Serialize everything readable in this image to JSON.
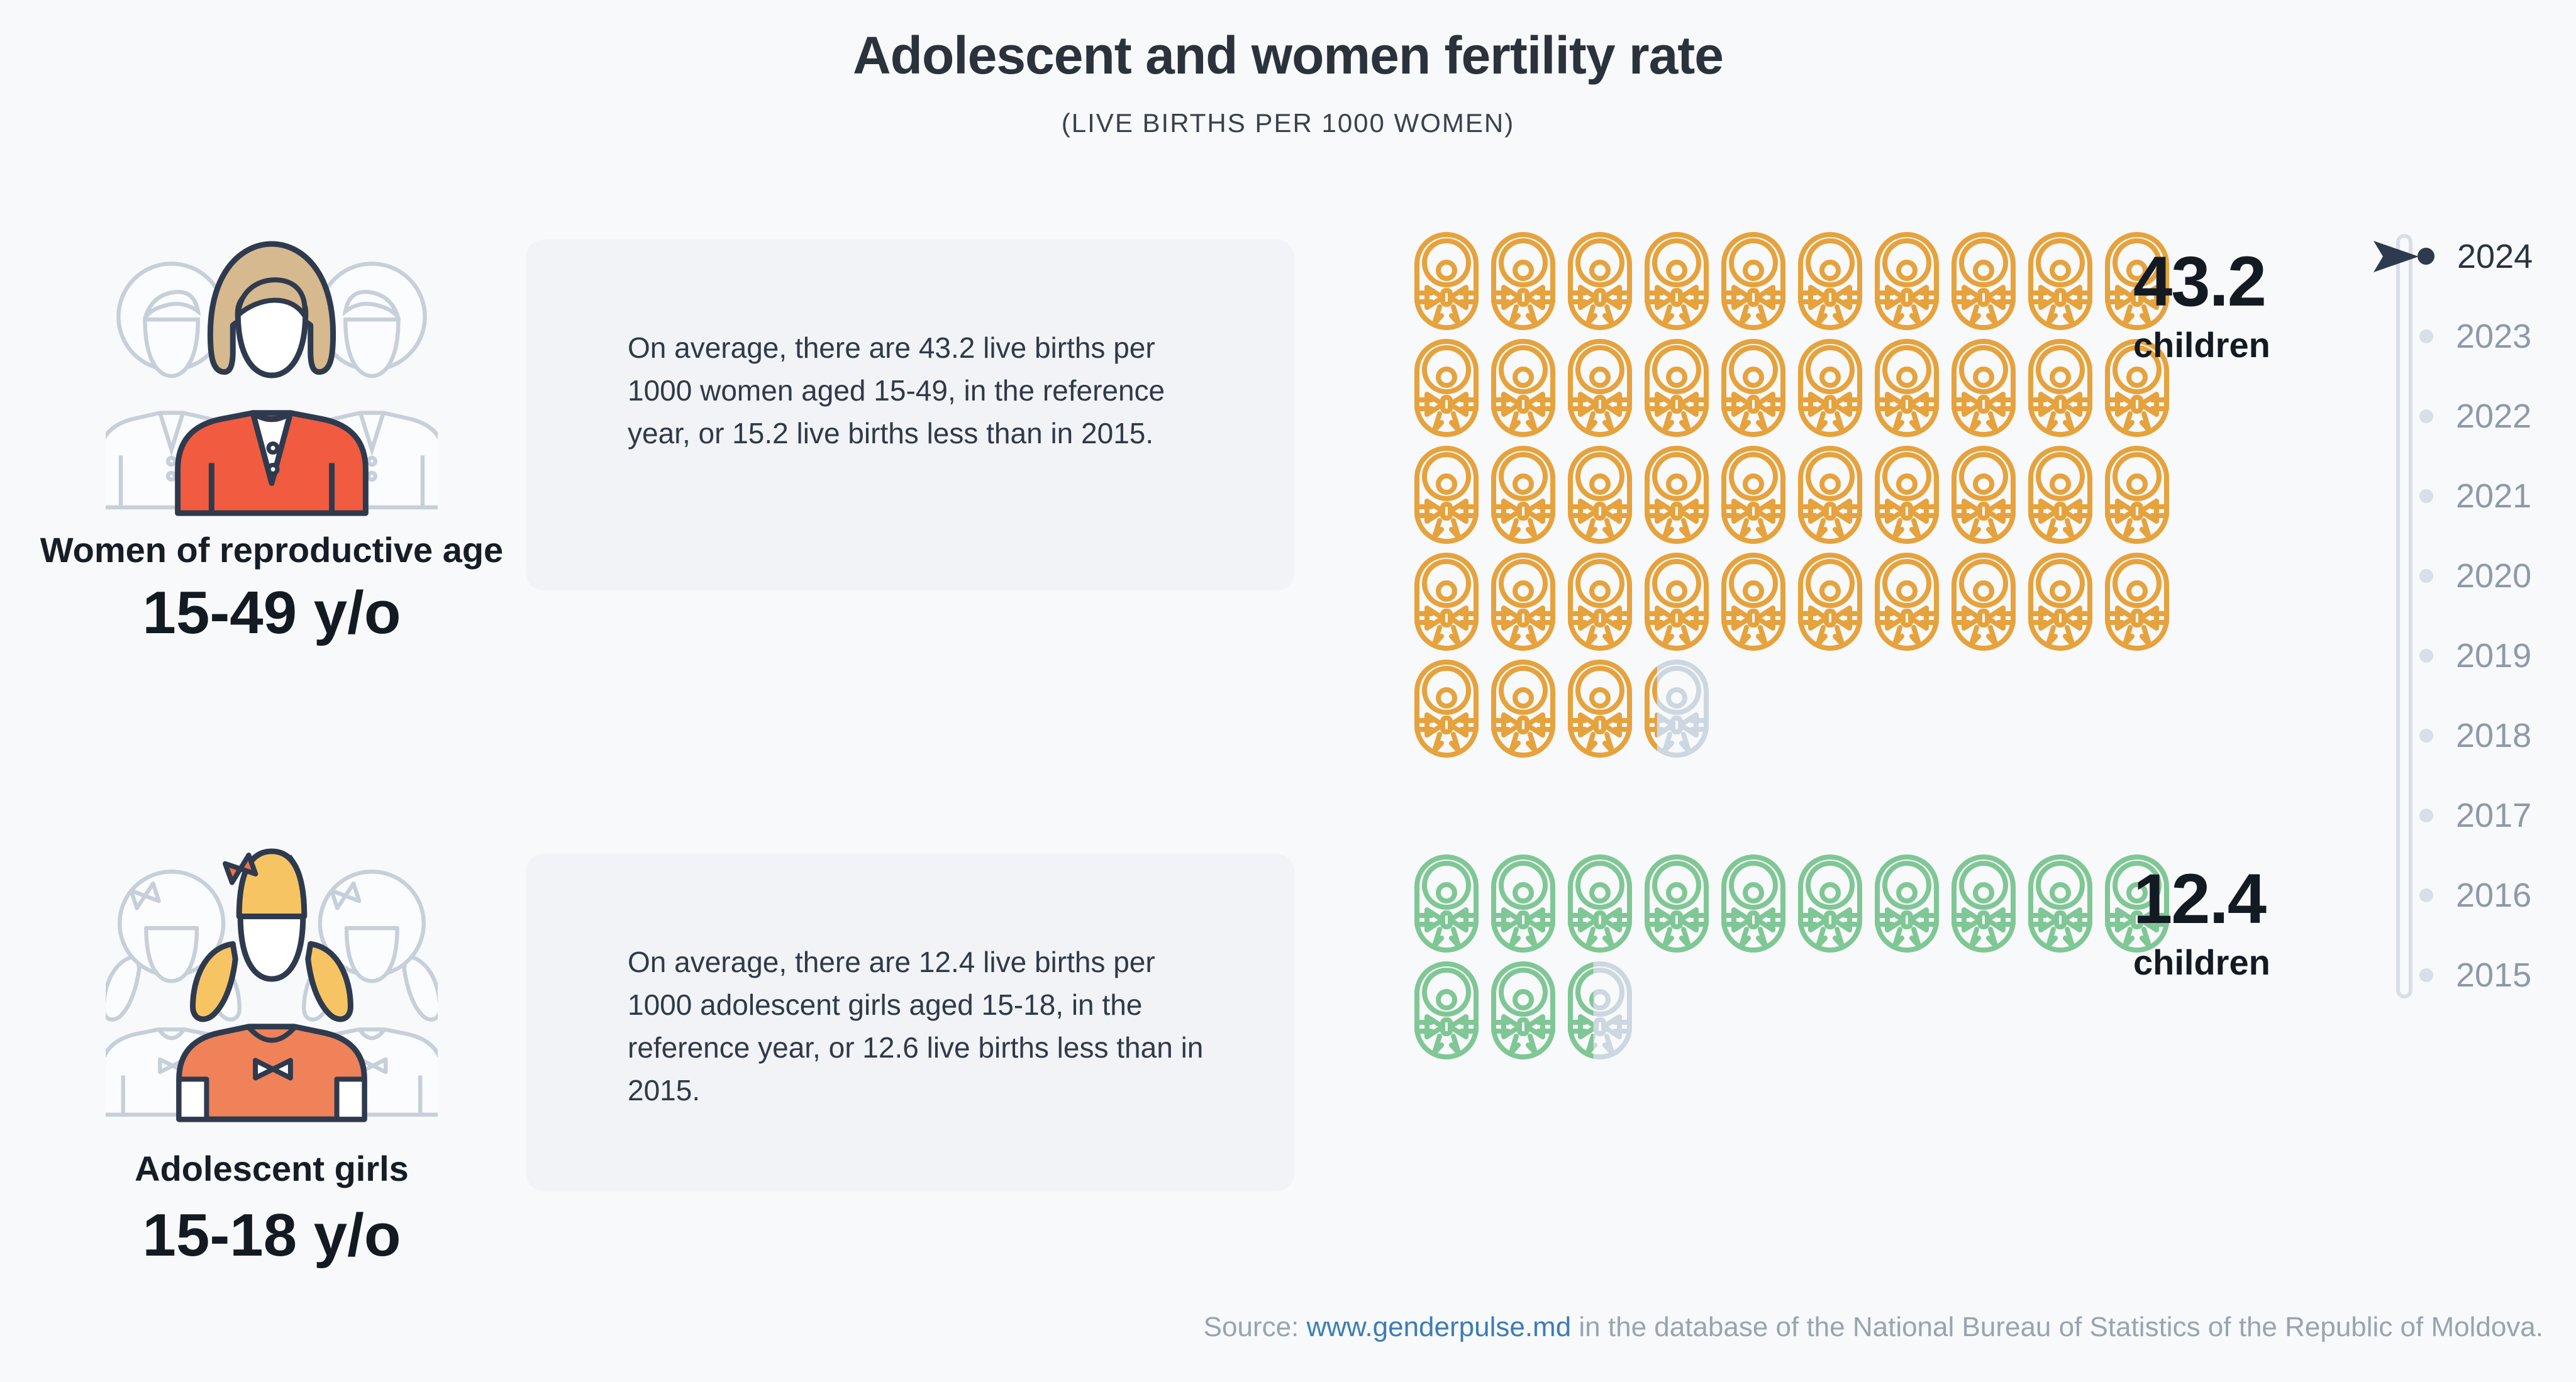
{
  "header": {
    "title": "Adolescent and women fertility rate",
    "subtitle": "(LIVE BIRTHS PER 1000 WOMEN)"
  },
  "groups": [
    {
      "id": "women",
      "label": "Women of reproductive age",
      "age_range": "15-49 y/o",
      "description": "On average, there are 43.2 live births per 1000 women aged 15-49, in the reference year, or 15.2 live births less than in 2015.",
      "value": 43.2,
      "value_label": "43.2",
      "value_unit": "children",
      "icon_color": "#E6A23C"
    },
    {
      "id": "girls",
      "label": "Adolescent girls",
      "age_range": "15-18 y/o",
      "description": "On average, there are 12.4 live births per 1000 adolescent girls aged 15-18, in the reference year, or 12.6 live births less than in 2015.",
      "value": 12.4,
      "value_label": "12.4",
      "value_unit": "children",
      "icon_color": "#7FC795"
    }
  ],
  "chart_data": {
    "type": "pictogram",
    "title": "Adolescent and women fertility rate",
    "subtitle": "(LIVE BIRTHS PER 1000 WOMEN)",
    "unit": "live births per 1000 women",
    "icon_unit": 1,
    "icons_per_row": 10,
    "empty_color": "#CDD7E1",
    "series": [
      {
        "name": "Women of reproductive age 15-49 y/o",
        "value": 43.2,
        "color": "#E6A23C",
        "value_label": "43.2 children"
      },
      {
        "name": "Adolescent girls 15-18 y/o",
        "value": 12.4,
        "color": "#7FC795",
        "value_label": "12.4 children"
      }
    ],
    "selected_year": "2024"
  },
  "timeline": {
    "years": [
      "2024",
      "2023",
      "2022",
      "2021",
      "2020",
      "2019",
      "2018",
      "2017",
      "2016",
      "2015"
    ],
    "selected": "2024"
  },
  "source": {
    "prefix": "Source: ",
    "link_text": "www.genderpulse.md",
    "suffix": " in the database of the National Bureau of Statistics of the Republic of Moldova."
  },
  "colors": {
    "background": "#F8F9FA",
    "box_background": "#F1F3F6",
    "outline_navy": "#2E3A4E",
    "women_icon": "#E6A23C",
    "girls_icon": "#7FC795",
    "empty_icon": "#CDD7E1",
    "jacket_red": "#F15B40",
    "shirt_orange": "#F0825A",
    "hair_tan": "#D6B98E",
    "hair_yellow": "#F7C463",
    "year_selected": "#2A3441",
    "year_unselected": "#8E99A9",
    "source_link": "#3B7CB8"
  }
}
